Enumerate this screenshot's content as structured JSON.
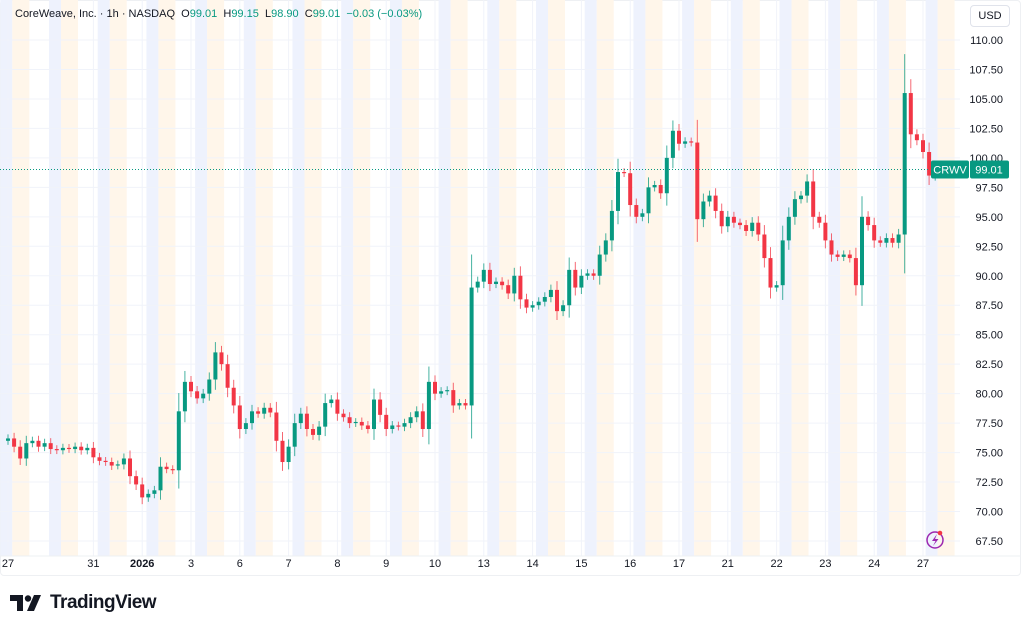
{
  "header": {
    "symbol_name": "CoreWeave, Inc.",
    "interval": "1h",
    "exchange": "NASDAQ",
    "open_label": "O",
    "open": "99.01",
    "high_label": "H",
    "high": "99.15",
    "low_label": "L",
    "low": "98.90",
    "close_label": "C",
    "close": "99.01",
    "change": "−0.03 (−0.03%)"
  },
  "currency": "USD",
  "ticker_label": "CRWV",
  "last_price": "99.01",
  "brand": "TradingView",
  "colors": {
    "up": "#089981",
    "down": "#f23645",
    "premarket": "#eef2fd",
    "afterhours": "#fff6ea",
    "alert_icon": "#9c27b0"
  },
  "icons": {
    "alert": "lightning-bolt-icon",
    "logo": "tradingview-logo-icon"
  },
  "chart_data": {
    "type": "candlestick",
    "title": "",
    "ylim": [
      67.5,
      110
    ],
    "yticks": [
      "67.50",
      "70.00",
      "72.50",
      "75.00",
      "77.50",
      "80.00",
      "82.50",
      "85.00",
      "87.50",
      "90.00",
      "92.50",
      "95.00",
      "97.50",
      "100.00",
      "102.50",
      "105.00",
      "107.50",
      "110.00"
    ],
    "grid": true,
    "xticks": [
      {
        "label": "27",
        "index": 0
      },
      {
        "label": "31",
        "index": 14
      },
      {
        "label": "2026",
        "index": 22
      },
      {
        "label": "3",
        "index": 30
      },
      {
        "label": "6",
        "index": 38
      },
      {
        "label": "7",
        "index": 46
      },
      {
        "label": "8",
        "index": 54
      },
      {
        "label": "9",
        "index": 62
      },
      {
        "label": "10",
        "index": 70
      },
      {
        "label": "13",
        "index": 78
      },
      {
        "label": "14",
        "index": 86
      },
      {
        "label": "15",
        "index": 94
      },
      {
        "label": "16",
        "index": 102
      },
      {
        "label": "17",
        "index": 110
      },
      {
        "label": "21",
        "index": 118
      },
      {
        "label": "22",
        "index": 126
      },
      {
        "label": "23",
        "index": 134
      },
      {
        "label": "24",
        "index": 142
      },
      {
        "label": "27",
        "index": 150
      }
    ],
    "close": [
      76.2,
      75.5,
      74.5,
      75.8,
      76,
      75.5,
      75.8,
      75.3,
      75.2,
      75.4,
      75.3,
      75.5,
      75.2,
      75.4,
      74.6,
      74.3,
      74.2,
      73.9,
      74,
      74.5,
      73,
      72.3,
      71.2,
      71.5,
      71.8,
      73.8,
      73.6,
      73.5,
      78.5,
      81,
      80.2,
      79.6,
      80,
      81.2,
      83.5,
      82.5,
      80.5,
      79,
      77,
      77.5,
      78.5,
      78.3,
      78.8,
      78.4,
      76,
      74.2,
      75.5,
      77.5,
      78.3,
      77,
      76.5,
      77.2,
      79.2,
      79.5,
      78.3,
      78,
      77.5,
      77.6,
      77.3,
      77,
      79.5,
      78.2,
      77,
      77.3,
      77.2,
      77.5,
      78,
      78.5,
      77,
      81,
      80,
      80.2,
      80.3,
      79,
      79.2,
      79,
      89,
      89.5,
      90.5,
      89.3,
      89.5,
      89.2,
      88.5,
      90,
      88,
      87.3,
      87.5,
      87.8,
      88.2,
      88.8,
      87,
      87.5,
      90.5,
      89,
      90,
      90.2,
      90,
      91.8,
      93,
      95.5,
      98.8,
      98.7,
      96,
      95,
      95.3,
      97.5,
      97.7,
      97,
      100,
      102.3,
      101.2,
      101.4,
      101.3,
      94.8,
      96.3,
      96.8,
      95.5,
      94.2,
      95,
      94.5,
      94.3,
      93.8,
      94.5,
      93.5,
      91.5,
      89,
      89.2,
      93,
      95,
      96.5,
      96.8,
      98,
      95,
      94.5,
      93,
      91.8,
      91.6,
      91.8,
      91.5,
      89.2,
      95,
      94.3,
      93,
      92.8,
      93.2,
      92.8,
      93.5,
      105.5,
      102,
      101.5,
      100.5,
      98.5,
      99.01
    ],
    "first_open": 76.0,
    "last": 99.01
  }
}
